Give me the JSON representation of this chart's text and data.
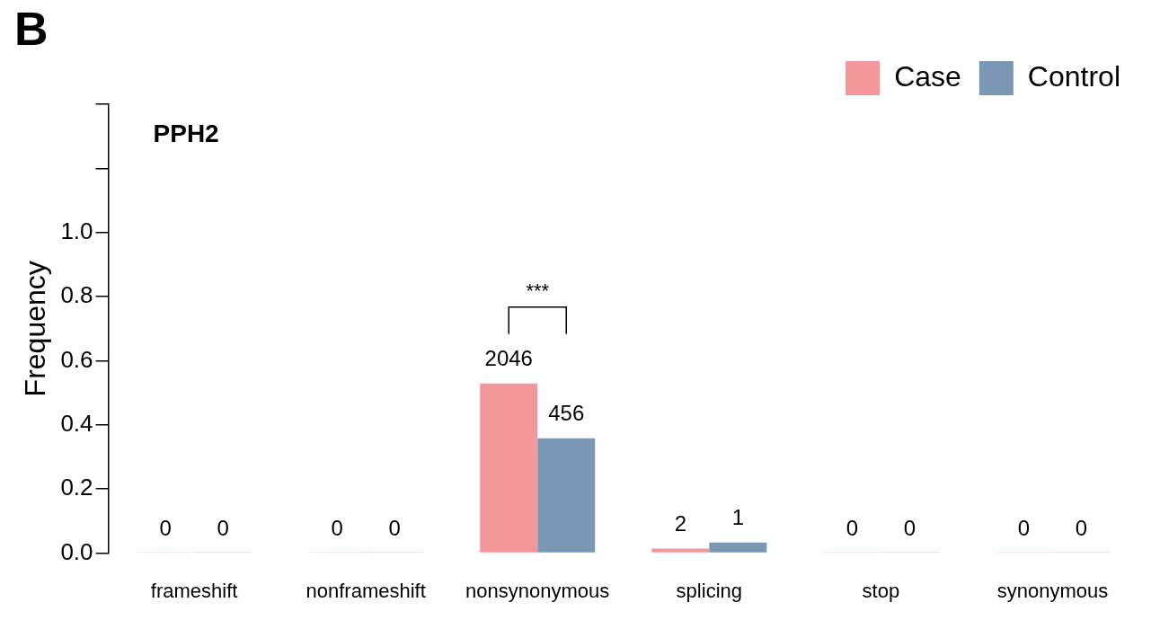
{
  "chart_data": {
    "type": "bar",
    "title": "PPH2",
    "ylabel": "Frequency",
    "categories": [
      "frameshift",
      "nonframeshift",
      "nonsynonymous",
      "splicing",
      "stop",
      "synonymous"
    ],
    "series": [
      {
        "name": "Case",
        "color": "#f4979a",
        "values": [
          0,
          0,
          0.529,
          0.014,
          0,
          0
        ]
      },
      {
        "name": "Control",
        "color": "#7a97b3",
        "values": [
          0,
          0,
          0.358,
          0.033,
          0,
          0
        ]
      }
    ],
    "ylim": [
      0,
      1.4
    ],
    "yticks": [
      {
        "value": 0,
        "label": "0.0"
      },
      {
        "value": 0.2,
        "label": "0.2"
      },
      {
        "value": 0.4,
        "label": "0.4"
      },
      {
        "value": 0.6,
        "label": "0.6"
      },
      {
        "value": 0.8,
        "label": "0.8"
      },
      {
        "value": 1.0,
        "label": "1.0"
      },
      {
        "value": 1.2,
        "label": null
      },
      {
        "value": 1.4,
        "label": null
      }
    ],
    "grid": false,
    "legend": "top right",
    "annotations": [
      "B",
      "***",
      {
        "text": "0",
        "x": "frameshift",
        "y": 0
      },
      {
        "text": "0",
        "x": "frameshift",
        "y": 0
      },
      {
        "text": "0",
        "x": "nonframeshift",
        "y": 0
      },
      {
        "text": "0",
        "x": "nonframeshift",
        "y": 0
      },
      {
        "text": "2046",
        "x": "nonsynonymous",
        "y": 0.529
      },
      {
        "text": "456",
        "x": "nonsynonymous",
        "y": 0.358
      },
      {
        "text": "2",
        "x": "splicing",
        "y": 0.014
      },
      {
        "text": "1",
        "x": "splicing",
        "y": 0.033
      },
      {
        "text": "0",
        "x": "stop",
        "y": 0
      },
      {
        "text": "0",
        "x": "stop",
        "y": 0
      },
      {
        "text": "0",
        "x": "synonymous",
        "y": 0
      },
      {
        "text": "0",
        "x": "synonymous",
        "y": 0
      }
    ]
  }
}
